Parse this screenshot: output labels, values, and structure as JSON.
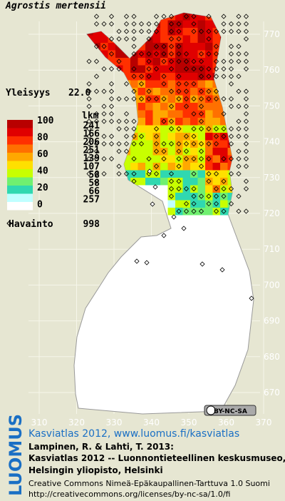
{
  "title": "Agrostis mertensii",
  "frequency": {
    "label": "Yleisyys",
    "value": "22.0"
  },
  "legend": {
    "count_header": "lkm",
    "levels": [
      "100",
      "80",
      "60",
      "40",
      "20",
      "0"
    ],
    "counts": [
      "241",
      "166",
      "206",
      "251",
      "139",
      "107",
      "58",
      "58",
      "66",
      "257"
    ],
    "colors": [
      "#b80000",
      "#e00000",
      "#ff3000",
      "#ff7000",
      "#ffa800",
      "#ffe000",
      "#c8ff00",
      "#70f070",
      "#30d8b0",
      "#c0ffff",
      "#ffffff"
    ]
  },
  "observations": {
    "label": "Havainto",
    "value": "998"
  },
  "x_ticks": [
    "310",
    "320",
    "330",
    "340",
    "350",
    "360",
    "370"
  ],
  "y_ticks": [
    "770",
    "760",
    "750",
    "740",
    "730",
    "720",
    "710",
    "700",
    "690",
    "680",
    "670"
  ],
  "license_badge": "BY-NC-SA",
  "brand": "LUOMUS",
  "credits": {
    "headline": "Kasviatlas 2012, www.luomus.fi/kasviatlas",
    "lines": [
      "Lampinen, R. & Lahti, T. 2013:",
      "Kasviatlas 2012 -- Luonnontieteellinen keskusmuseo,",
      "Helsingin yliopisto, Helsinki"
    ],
    "license": [
      "Creative Commons Nimeä-Epäkaupallinen-Tarttuva 1.0 Suomi",
      "http://creativecommons.org/licenses/by-nc-sa/1.0/fi"
    ]
  }
}
